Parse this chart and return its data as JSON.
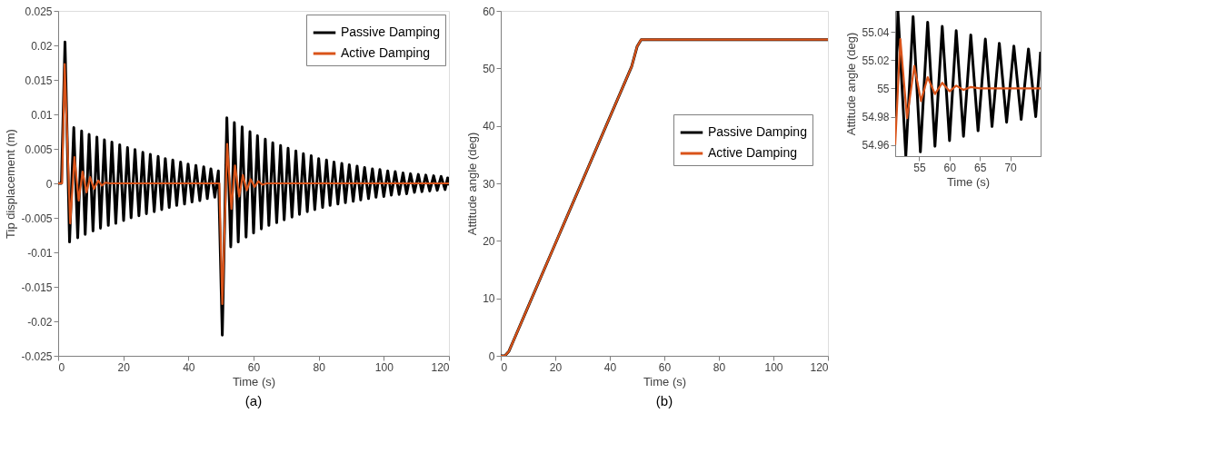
{
  "chart_data": [
    {
      "type": "line",
      "xlabel": "Time (s)",
      "ylabel": "Tip displacement (m)",
      "xlim": [
        0,
        120
      ],
      "xticks": [
        0,
        20,
        40,
        60,
        80,
        100,
        120
      ],
      "ylim": [
        -0.025,
        0.025
      ],
      "yticks": [
        -0.025,
        -0.02,
        -0.015,
        -0.01,
        -0.005,
        0,
        0.005,
        0.01,
        0.015,
        0.02,
        0.025
      ],
      "legend": "top right",
      "line_style": "solid",
      "annotations": [
        "(a)"
      ],
      "series": [
        {
          "name": "Passive Damping",
          "color": "#000000",
          "x": [
            0,
            1.0,
            2.1,
            3.5,
            4.8,
            6.0,
            7.2,
            8.3,
            9.5,
            10.7,
            11.9,
            13.0,
            14.2,
            15.4,
            16.5,
            17.7,
            18.9,
            20.1,
            21.3,
            22.4,
            23.6,
            24.8,
            26.0,
            27.1,
            28.3,
            29.5,
            30.7,
            31.8,
            32.9,
            34.1,
            35.2,
            36.4,
            37.6,
            38.8,
            39.9,
            41.1,
            42.3,
            43.5,
            44.7,
            45.8,
            46.9,
            48.1,
            49.2,
            50.4,
            51.8,
            53.0,
            54.1,
            55.3,
            56.5,
            57.7,
            58.9,
            60.0,
            61.2,
            62.4,
            63.6,
            64.7,
            65.9,
            67.1,
            68.3,
            69.4,
            70.6,
            71.8,
            73.0,
            74.1,
            75.3,
            76.5,
            77.7,
            78.8,
            80.0,
            81.2,
            82.4,
            83.5,
            84.7,
            85.9,
            87.1,
            88.2,
            89.4,
            90.6,
            91.8,
            92.9,
            94.1,
            95.3,
            96.5,
            97.6,
            98.8,
            100.0,
            101.2,
            102.3,
            103.5,
            104.7,
            105.9,
            107.0,
            108.2,
            109.4,
            110.6,
            111.7,
            112.9,
            114.1,
            115.3,
            116.4,
            117.6,
            118.8,
            119.6,
            120.0
          ],
          "values": [
            0,
            0,
            0.0205,
            -0.0085,
            0.0081,
            -0.0079,
            0.0076,
            -0.0074,
            0.0071,
            -0.0069,
            0.0067,
            -0.0065,
            0.0063,
            -0.0061,
            0.006,
            -0.0058,
            0.0056,
            -0.0054,
            0.0052,
            -0.005,
            0.0049,
            -0.0047,
            0.0045,
            -0.0044,
            0.0042,
            -0.0041,
            0.0039,
            -0.0038,
            0.0036,
            -0.0035,
            0.0034,
            -0.0032,
            0.0031,
            -0.003,
            0.0028,
            -0.0027,
            0.0026,
            -0.0025,
            0.0024,
            -0.0022,
            0.0021,
            -0.002,
            0.0018,
            -0.022,
            0.0095,
            -0.0092,
            0.0088,
            -0.0085,
            0.0082,
            -0.0078,
            0.0075,
            -0.0072,
            0.0069,
            -0.0066,
            0.0064,
            -0.0061,
            0.0059,
            -0.0057,
            0.0055,
            -0.0053,
            0.0051,
            -0.0049,
            0.0047,
            -0.0045,
            0.0043,
            -0.0041,
            0.004,
            -0.0038,
            0.0036,
            -0.0035,
            0.0034,
            -0.0032,
            0.0031,
            -0.003,
            0.0029,
            -0.0028,
            0.0027,
            -0.0026,
            0.0025,
            -0.0024,
            0.0023,
            -0.0022,
            0.0021,
            -0.002,
            0.002,
            -0.0019,
            0.0018,
            -0.0017,
            0.0017,
            -0.0016,
            0.0015,
            -0.0015,
            0.0014,
            -0.0013,
            0.0013,
            -0.0012,
            0.0012,
            -0.0011,
            0.0011,
            -0.001,
            0.001,
            -0.0009,
            0.0008,
            -0.0003
          ]
        },
        {
          "name": "Active Damping",
          "color": "#d95319",
          "x": [
            0,
            1.2,
            2.0,
            3.7,
            5.0,
            6.3,
            7.5,
            8.7,
            9.8,
            11.0,
            12.3,
            13.4,
            14.5,
            16.0,
            49.5,
            50.4,
            51.9,
            53.2,
            54.3,
            55.6,
            56.7,
            57.9,
            59.1,
            60.3,
            61.5,
            62.7,
            64.0,
            120.0
          ],
          "values": [
            0,
            0,
            0.0173,
            -0.0058,
            0.0038,
            -0.0025,
            0.0017,
            -0.0013,
            0.0009,
            -0.0008,
            0.0004,
            -0.0003,
            0.0001,
            0,
            0,
            -0.0175,
            0.0057,
            -0.0037,
            0.0026,
            -0.0019,
            0.0012,
            -0.001,
            0.0006,
            -0.0005,
            0.0003,
            -0.0002,
            0,
            0
          ]
        }
      ]
    },
    {
      "type": "line",
      "xlabel": "Time (s)",
      "ylabel": "Attitude angle (deg)",
      "xlim": [
        0,
        120
      ],
      "xticks": [
        0,
        20,
        40,
        60,
        80,
        100,
        120
      ],
      "ylim": [
        0,
        60
      ],
      "yticks": [
        0,
        10,
        20,
        30,
        40,
        50,
        60
      ],
      "legend": "right",
      "line_style": "solid",
      "annotations": [
        "(b)"
      ],
      "series": [
        {
          "name": "Passive Damping",
          "color": "#000000",
          "x": [
            0,
            1.5,
            3,
            5,
            10,
            20,
            30,
            40,
            48,
            50,
            51.5,
            53,
            120
          ],
          "values": [
            0,
            0,
            0.8,
            3.0,
            8.5,
            19.5,
            30.5,
            41.5,
            50.3,
            53.8,
            55.0,
            55,
            55
          ]
        },
        {
          "name": "Active Damping",
          "color": "#d95319",
          "x": [
            0,
            1.5,
            3,
            5,
            10,
            20,
            30,
            40,
            48,
            50,
            51.5,
            53,
            120
          ],
          "values": [
            0,
            0,
            0.8,
            3.0,
            8.5,
            19.5,
            30.5,
            41.5,
            50.3,
            53.8,
            55.0,
            55,
            55
          ]
        }
      ]
    },
    {
      "type": "line",
      "xlabel": "Time (s)",
      "ylabel": "Attitude angle (deg)",
      "xlim": [
        51.05,
        75
      ],
      "xticks": [
        55,
        60,
        65,
        70
      ],
      "ylim": [
        54.952,
        55.055
      ],
      "yticks": [
        54.96,
        54.98,
        55,
        55.02,
        55.04
      ],
      "line_style": "solid",
      "series": [
        {
          "color": "#000000",
          "x": [
            51.05,
            51.5,
            52.8,
            54.0,
            55.2,
            56.4,
            57.6,
            58.8,
            60.0,
            61.1,
            62.3,
            63.5,
            64.7,
            65.9,
            67.0,
            68.2,
            69.4,
            70.6,
            71.8,
            73.0,
            74.2,
            75.0
          ],
          "values": [
            54.98,
            55.055,
            54.952,
            55.051,
            54.955,
            55.047,
            54.959,
            55.044,
            54.963,
            55.041,
            54.966,
            55.038,
            54.97,
            55.035,
            54.973,
            55.032,
            54.976,
            55.03,
            54.978,
            55.028,
            54.98,
            55.026
          ]
        },
        {
          "color": "#d95319",
          "x": [
            51.05,
            51.9,
            53.0,
            54.2,
            55.3,
            56.4,
            57.6,
            58.8,
            60.0,
            61.1,
            62.3,
            63.5,
            65.0,
            75.0
          ],
          "values": [
            54.96,
            55.035,
            54.979,
            55.016,
            54.991,
            55.008,
            54.996,
            55.004,
            54.998,
            55.002,
            54.999,
            55.001,
            55.0,
            55.0
          ]
        }
      ]
    }
  ]
}
